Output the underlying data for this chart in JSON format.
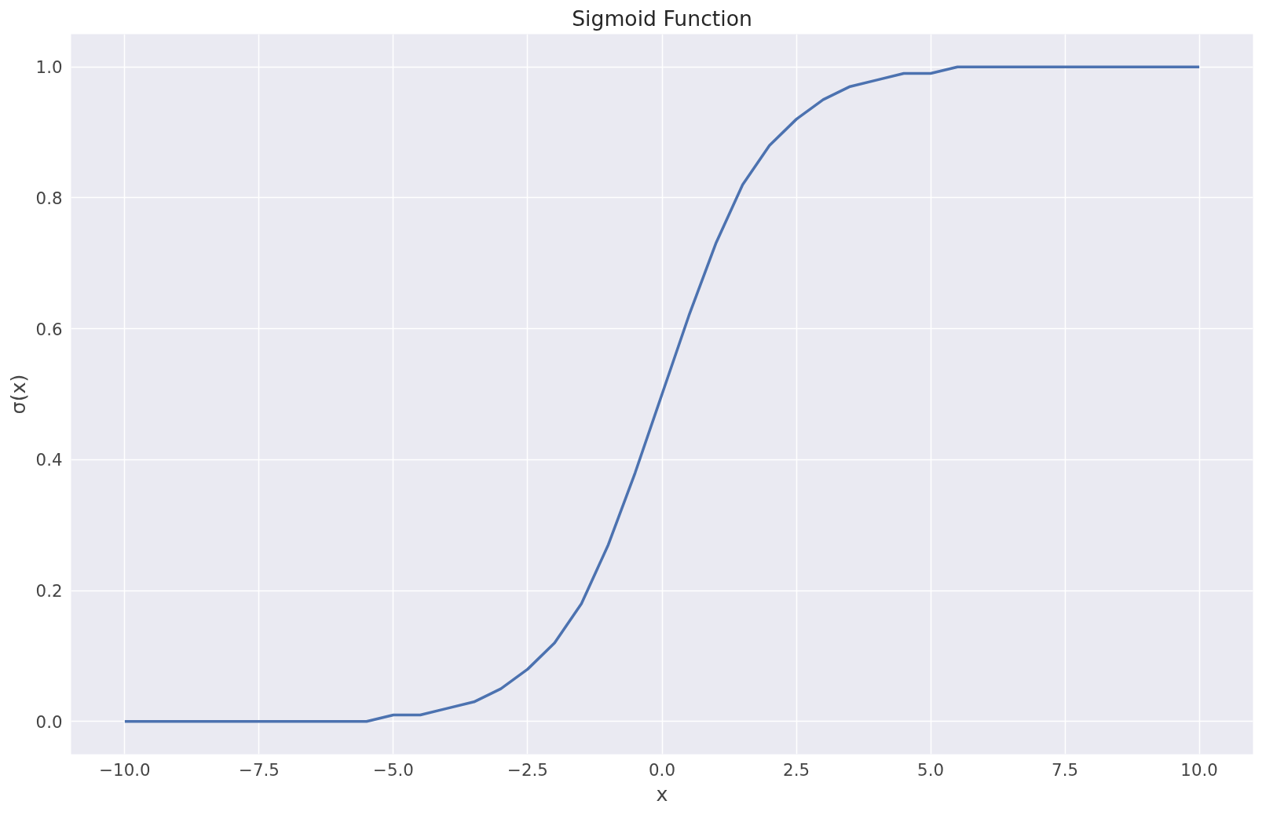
{
  "chart_data": {
    "type": "line",
    "title": "Sigmoid Function",
    "xlabel": "x",
    "ylabel": "σ(x)",
    "x": [
      -10,
      -9.5,
      -9,
      -8.5,
      -8,
      -7.5,
      -7,
      -6.5,
      -6,
      -5.5,
      -5,
      -4.5,
      -4,
      -3.5,
      -3,
      -2.5,
      -2,
      -1.5,
      -1,
      -0.5,
      0,
      0.5,
      1,
      1.5,
      2,
      2.5,
      3,
      3.5,
      4,
      4.5,
      5,
      5.5,
      6,
      6.5,
      7,
      7.5,
      8,
      8.5,
      9,
      9.5,
      10
    ],
    "series": [
      {
        "color": "#4c72b0",
        "values": [
          0.0,
          0.0,
          0.0,
          0.0,
          0.0,
          0.0,
          0.0,
          0.0,
          0.0,
          0.0,
          0.01,
          0.01,
          0.02,
          0.03,
          0.05,
          0.08,
          0.12,
          0.18,
          0.27,
          0.38,
          0.5,
          0.62,
          0.73,
          0.82,
          0.88,
          0.92,
          0.95,
          0.97,
          0.98,
          0.99,
          0.99,
          1.0,
          1.0,
          1.0,
          1.0,
          1.0,
          1.0,
          1.0,
          1.0,
          1.0,
          1.0
        ]
      }
    ],
    "xlim": [
      -11,
      11
    ],
    "ylim": [
      -0.05,
      1.05
    ],
    "xticks": [
      {
        "value": -10,
        "label": "−10.0"
      },
      {
        "value": -7.5,
        "label": "−7.5"
      },
      {
        "value": -5,
        "label": "−5.0"
      },
      {
        "value": -2.5,
        "label": "−2.5"
      },
      {
        "value": 0,
        "label": "0.0"
      },
      {
        "value": 2.5,
        "label": "2.5"
      },
      {
        "value": 5,
        "label": "5.0"
      },
      {
        "value": 7.5,
        "label": "7.5"
      },
      {
        "value": 10,
        "label": "10.0"
      }
    ],
    "yticks": [
      {
        "value": 0,
        "label": "0.0"
      },
      {
        "value": 0.2,
        "label": "0.2"
      },
      {
        "value": 0.4,
        "label": "0.4"
      },
      {
        "value": 0.6,
        "label": "0.6"
      },
      {
        "value": 0.8,
        "label": "0.8"
      },
      {
        "value": 1,
        "label": "1.0"
      }
    ],
    "grid": true,
    "line_style": "solid"
  }
}
